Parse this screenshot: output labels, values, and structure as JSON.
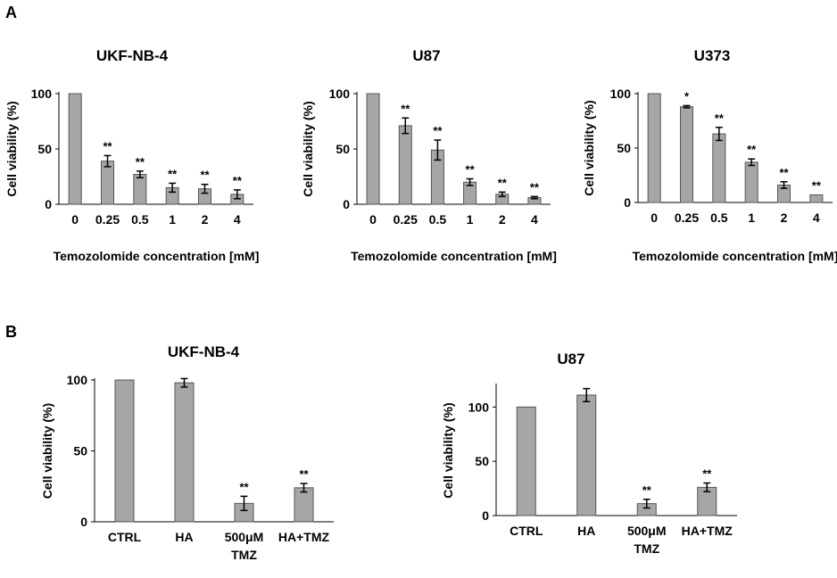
{
  "panels": {
    "a": "A",
    "b": "B"
  },
  "chart_data": [
    {
      "type": "bar",
      "title": "UKF-NB-4",
      "xlabel": "Temozolomide concentration [mM]",
      "ylabel": "Cell viability (%)",
      "categories": [
        "0",
        "0.25",
        "0.5",
        "1",
        "2",
        "4"
      ],
      "values": [
        100,
        39,
        27,
        15,
        14,
        9
      ],
      "errors": [
        0,
        5,
        3,
        4,
        4,
        4
      ],
      "significance": [
        "",
        "**",
        "**",
        "**",
        "**",
        "**"
      ],
      "ylim": [
        0,
        100
      ],
      "yticks": [
        0,
        50,
        100
      ],
      "bar_color": "#a6a6a6"
    },
    {
      "type": "bar",
      "title": "U87",
      "xlabel": "Temozolomide concentration [mM]",
      "ylabel": "Cell viability (%)",
      "categories": [
        "0",
        "0.25",
        "0.5",
        "1",
        "2",
        "4"
      ],
      "values": [
        100,
        71,
        49,
        20,
        9,
        6
      ],
      "errors": [
        0,
        7,
        9,
        3,
        2,
        1
      ],
      "significance": [
        "",
        "**",
        "**",
        "**",
        "**",
        "**"
      ],
      "ylim": [
        0,
        100
      ],
      "yticks": [
        0,
        50,
        100
      ],
      "bar_color": "#a6a6a6"
    },
    {
      "type": "bar",
      "title": "U373",
      "xlabel": "Temozolomide concentration [mM]",
      "ylabel": "Cell viability (%)",
      "categories": [
        "0",
        "0.25",
        "0.5",
        "1",
        "2",
        "4"
      ],
      "values": [
        100,
        88,
        63,
        37,
        16,
        7
      ],
      "errors": [
        0,
        1,
        6,
        3,
        3,
        0
      ],
      "significance": [
        "",
        "*",
        "**",
        "**",
        "**",
        "**"
      ],
      "ylim": [
        0,
        100
      ],
      "yticks": [
        0,
        50,
        100
      ],
      "bar_color": "#a6a6a6"
    },
    {
      "type": "bar",
      "title": "UKF-NB-4",
      "xlabel": "",
      "ylabel": "Cell viability (%)",
      "categories": [
        [
          "CTRL"
        ],
        [
          "HA"
        ],
        [
          "500μM",
          "TMZ"
        ],
        [
          "HA+TMZ"
        ]
      ],
      "values": [
        100,
        98,
        13,
        24
      ],
      "errors": [
        0,
        3,
        5,
        3
      ],
      "significance": [
        "",
        "",
        "**",
        "**"
      ],
      "ylim": [
        0,
        100
      ],
      "yticks": [
        0,
        50,
        100
      ],
      "bar_color": "#a6a6a6"
    },
    {
      "type": "bar",
      "title": "U87",
      "xlabel": "",
      "ylabel": "Cell viability (%)",
      "categories": [
        [
          "CTRL"
        ],
        [
          "HA"
        ],
        [
          "500μM",
          "TMZ"
        ],
        [
          "HA+TMZ"
        ]
      ],
      "values": [
        100,
        111,
        11,
        26
      ],
      "errors": [
        0,
        6,
        4,
        4
      ],
      "significance": [
        "",
        "",
        "**",
        "**"
      ],
      "ylim": [
        0,
        120
      ],
      "yticks": [
        0,
        50,
        100
      ],
      "bar_color": "#a6a6a6"
    }
  ]
}
